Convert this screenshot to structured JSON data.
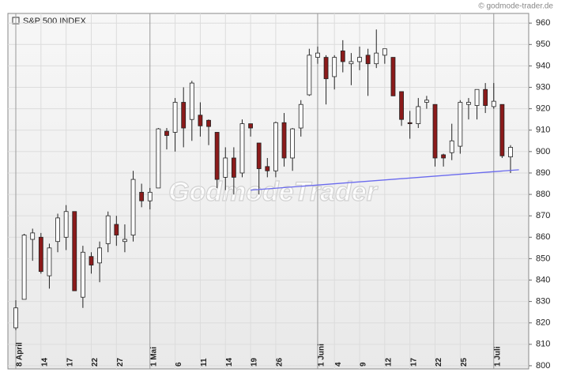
{
  "chart_data": {
    "type": "candlestick",
    "title": "S&P 500 INDEX",
    "source": "© godmode-trader.de",
    "watermark": "GodmodeTrader",
    "categories": [
      "8 April",
      null,
      null,
      "14",
      null,
      null,
      "17",
      null,
      null,
      "22",
      null,
      null,
      "27",
      null,
      null,
      null,
      "1 Mai",
      null,
      null,
      "6",
      null,
      null,
      "11",
      null,
      null,
      "14",
      null,
      null,
      "19",
      null,
      null,
      "26",
      null,
      null,
      null,
      null,
      "1 Juni",
      null,
      "4",
      null,
      null,
      "9",
      null,
      null,
      "12",
      null,
      null,
      "17",
      null,
      null,
      "22",
      null,
      null,
      "25",
      null,
      null,
      null,
      "1 Juli",
      null,
      null
    ],
    "open": [
      817.7,
      831,
      859,
      860,
      842,
      858,
      860,
      872,
      832,
      851,
      848,
      857,
      866,
      858,
      861,
      881,
      877,
      883,
      909.5,
      909,
      923,
      915,
      917,
      914.6,
      909,
      888,
      897,
      890,
      913,
      904,
      893,
      891,
      913.5,
      897,
      911,
      926.5,
      944,
      944,
      935,
      947,
      941,
      942,
      945,
      941,
      945,
      944,
      928,
      913.5,
      913,
      923,
      922,
      898.5,
      899.5,
      902.5,
      922,
      921.5,
      929,
      921,
      922,
      897.5
    ],
    "high": [
      830.6,
      861.6,
      864,
      862,
      857,
      871,
      875,
      872,
      856,
      853,
      858,
      872,
      870,
      866,
      891,
      885,
      883,
      911,
      911,
      925,
      930,
      933,
      923,
      915,
      909,
      902,
      902,
      915,
      913,
      904,
      897,
      914,
      918,
      911,
      924,
      948,
      949,
      945,
      945,
      952,
      946,
      949,
      948,
      957,
      948,
      944,
      928,
      919,
      925,
      926,
      922,
      899,
      913,
      924,
      925,
      929,
      932,
      932,
      922,
      903
    ],
    "low": [
      816.6,
      831,
      849,
      843,
      836,
      853,
      854,
      835,
      827,
      843,
      839,
      853,
      856,
      853,
      858,
      874,
      873,
      883,
      901,
      900,
      902,
      905,
      907,
      903,
      883,
      882,
      880,
      888,
      907,
      880,
      888,
      888,
      893,
      891,
      907,
      926,
      941,
      922,
      929,
      937,
      931,
      938,
      926,
      939,
      941,
      926,
      912,
      906,
      911,
      920,
      893,
      893,
      896,
      899,
      915,
      915,
      918,
      920,
      897,
      890
    ],
    "close": [
      827,
      861,
      862,
      844,
      855,
      869,
      872,
      835,
      853,
      847,
      855,
      870,
      861,
      859,
      887,
      877,
      881,
      910.6,
      907.5,
      923,
      911,
      932,
      912,
      911.7,
      887,
      897,
      888,
      913,
      911,
      892,
      891,
      913.5,
      897,
      910.6,
      922,
      945,
      946,
      934,
      944,
      942,
      942,
      944,
      941,
      946,
      948,
      926,
      915,
      913,
      921,
      924,
      897,
      897,
      905,
      923,
      923,
      929,
      921.5,
      923.5,
      898,
      902
    ],
    "up_color": "#ffffff",
    "down_color": "#8b1a1a",
    "trendline": {
      "x": [
        28,
        60
      ],
      "values": [
        882,
        891.5
      ],
      "color": "#6a6aee"
    },
    "ylim": [
      798.5,
      964.5
    ],
    "yticks": [
      800,
      810,
      820,
      830,
      840,
      850,
      860,
      870,
      880,
      890,
      900,
      910,
      920,
      930,
      940,
      950,
      960
    ],
    "grid": true
  }
}
